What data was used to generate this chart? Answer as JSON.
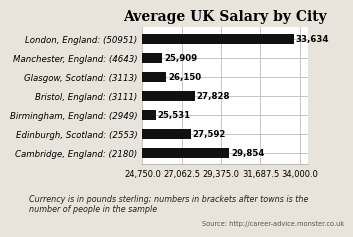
{
  "title": "Average UK Salary by City",
  "categories": [
    "London, England: (50951)",
    "Manchester, England: (4643)",
    "Glasgow, Scotland: (3113)",
    "Bristol, England: (3111)",
    "Birmingham, England: (2949)",
    "Edinburgh, Scotland: (2553)",
    "Cambridge, England: (2180)"
  ],
  "values": [
    33634,
    25909,
    26150,
    27828,
    25531,
    27592,
    29854
  ],
  "bar_color": "#111111",
  "xlim_min": 24750,
  "xlim_max": 34000,
  "xticks": [
    24750,
    27062.5,
    29375,
    31687.5,
    34000
  ],
  "xtick_labels": [
    "24,750.0",
    "27,062.5",
    "29,375.0",
    "31,687.5",
    "34,000.0"
  ],
  "footnote": "Currency is in pounds sterling; numbers in brackets after towns is the\nnumber of people in the sample",
  "source": "Source: http://career-advice.monster.co.uk",
  "title_fontsize": 10,
  "label_fontsize": 6.2,
  "tick_fontsize": 6.0,
  "footnote_fontsize": 5.8,
  "source_fontsize": 4.8,
  "value_labels": [
    "33,634",
    "25,909",
    "26,150",
    "27,828",
    "25,531",
    "27,592",
    "29,854"
  ],
  "bg_color": "#e8e4dc",
  "plot_bg_color": "#ffffff",
  "grid_color": "#bbbbbb"
}
